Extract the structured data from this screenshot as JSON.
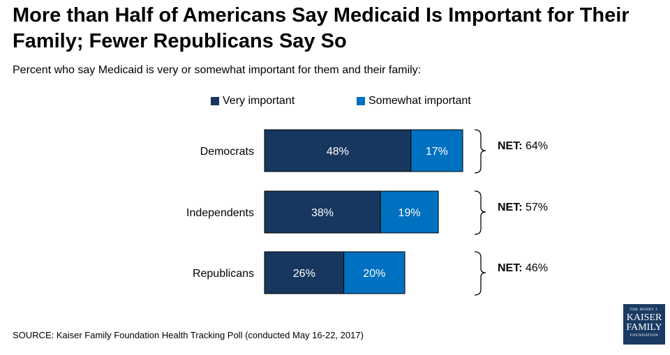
{
  "title": "More than Half of Americans Say Medicaid Is Important for Their Family; Fewer Republicans Say So",
  "subtitle": "Percent who say Medicaid is very or somewhat important for them and their family:",
  "source": "SOURCE: Kaiser Family Foundation Health Tracking Poll (conducted May 16-22, 2017)",
  "logo": {
    "line1": "THE HENRY J.",
    "line2": "KAISER",
    "line3": "FAMILY",
    "line4": "FOUNDATION"
  },
  "colors": {
    "very": "#17375e",
    "somewhat": "#0070c0"
  },
  "chart_data": {
    "type": "bar",
    "orientation": "horizontal",
    "stacked": true,
    "categories": [
      "Democrats",
      "Independents",
      "Republicans"
    ],
    "series": [
      {
        "name": "Very important",
        "values": [
          48,
          38,
          26
        ]
      },
      {
        "name": "Somewhat important",
        "values": [
          17,
          19,
          20
        ]
      }
    ],
    "data_labels": [
      [
        "48%",
        "38%",
        "26%"
      ],
      [
        "17%",
        "19%",
        "20%"
      ]
    ],
    "net": [
      {
        "label": "NET:",
        "value": "64%"
      },
      {
        "label": "NET:",
        "value": "57%"
      },
      {
        "label": "NET:",
        "value": "46%"
      }
    ],
    "legend_position": "top"
  }
}
